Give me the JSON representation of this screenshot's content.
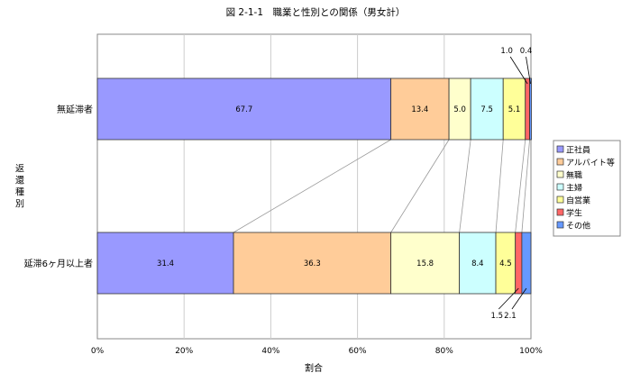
{
  "chart_data": {
    "type": "bar",
    "orientation": "horizontal",
    "stacked": "percent",
    "title": "図 2-1-1　職業と性別との関係（男女計）",
    "xlabel": "割合",
    "ylabel": "返還種別",
    "xlim": [
      0,
      100
    ],
    "x_ticks": [
      "0%",
      "20%",
      "40%",
      "60%",
      "80%",
      "100%"
    ],
    "grid": true,
    "legend_position": "right",
    "categories": [
      "無延滞者",
      "延滞6ヶ月以上者"
    ],
    "series": [
      {
        "name": "正社員",
        "color": "#9999FF",
        "values": [
          67.7,
          31.4
        ],
        "labels": [
          "67.7",
          "31.4"
        ]
      },
      {
        "name": "アルバイト等",
        "color": "#FFCC99",
        "values": [
          13.4,
          36.3
        ],
        "labels": [
          "13.4",
          "36.3"
        ]
      },
      {
        "name": "無職",
        "color": "#FFFFCC",
        "values": [
          5.0,
          15.8
        ],
        "labels": [
          "5.0",
          "15.8"
        ]
      },
      {
        "name": "主婦",
        "color": "#CCFFFF",
        "values": [
          7.5,
          8.4
        ],
        "labels": [
          "7.5",
          "8.4"
        ]
      },
      {
        "name": "自営業",
        "color": "#FFFF99",
        "values": [
          5.1,
          4.5
        ],
        "labels": [
          "5.1",
          "4.5"
        ]
      },
      {
        "name": "学生",
        "color": "#FF6666",
        "values": [
          1.0,
          1.5
        ],
        "labels": [
          "1.0",
          "1.5"
        ]
      },
      {
        "name": "その他",
        "color": "#6699FF",
        "values": [
          0.4,
          2.1
        ],
        "labels": [
          "0.4",
          "2.1"
        ]
      }
    ]
  }
}
